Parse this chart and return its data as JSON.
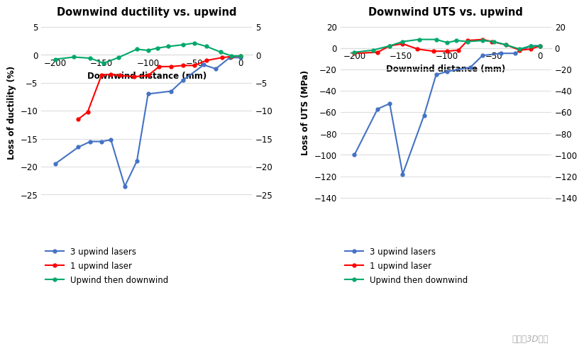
{
  "chart1": {
    "title": "Downwind ductility vs. upwind",
    "xlabel": "Downwind distance (mm)",
    "ylabel": "Loss of ductility (%)",
    "xlim": [
      -215,
      12
    ],
    "ylim": [
      -26.5,
      6
    ],
    "xticks": [
      -200,
      -150,
      -100,
      -50,
      0
    ],
    "yticks_left": [
      -25,
      -20,
      -15,
      -10,
      -5,
      0,
      5
    ],
    "yticks_right": [
      -25,
      -20,
      -15,
      -10,
      -5,
      0,
      5
    ],
    "blue_x": [
      -200,
      -175,
      -162,
      -150,
      -140,
      -125,
      -112,
      -100,
      -75,
      -62,
      -40,
      -27,
      -12,
      0
    ],
    "blue_y": [
      -19.5,
      -16.5,
      -15.5,
      -15.5,
      -15.2,
      -23.5,
      -19.0,
      -7.0,
      -6.5,
      -4.5,
      -1.8,
      -2.5,
      -0.5,
      -0.5
    ],
    "red_x": [
      -175,
      -165,
      -150,
      -140,
      -130,
      -115,
      -100,
      -88,
      -75,
      -62,
      -50,
      -37,
      -20,
      -10,
      0
    ],
    "red_y": [
      -11.5,
      -10.2,
      -3.6,
      -3.5,
      -3.7,
      -3.9,
      -3.7,
      -2.1,
      -2.1,
      -1.9,
      -1.9,
      -1.0,
      -0.5,
      -0.3,
      -0.2
    ],
    "green_x": [
      -200,
      -180,
      -162,
      -148,
      -132,
      -112,
      -100,
      -90,
      -78,
      -62,
      -50,
      -37,
      -22,
      -10,
      0
    ],
    "green_y": [
      -0.8,
      -0.4,
      -0.6,
      -1.5,
      -0.5,
      1.0,
      0.8,
      1.2,
      1.5,
      1.8,
      2.1,
      1.5,
      0.5,
      -0.2,
      -0.2
    ]
  },
  "chart2": {
    "title": "Downwind UTS vs. upwind",
    "xlabel": "Downwind distance (mm)",
    "ylabel": "Loss of UTS (MPa)",
    "xlim": [
      -215,
      12
    ],
    "ylim": [
      -145,
      25
    ],
    "xticks": [
      -200,
      -150,
      -100,
      -50,
      0
    ],
    "yticks_left": [
      -140,
      -120,
      -100,
      -80,
      -60,
      -40,
      -20,
      0,
      20
    ],
    "yticks_right": [
      -140,
      -120,
      -100,
      -80,
      -60,
      -40,
      -20,
      0,
      20
    ],
    "blue_x": [
      -200,
      -175,
      -162,
      -148,
      -125,
      -112,
      -100,
      -75,
      -62,
      -42,
      -27,
      -10,
      0
    ],
    "blue_y": [
      -100,
      -57,
      -52,
      -118,
      -63,
      -25,
      -22,
      -18,
      -7,
      -5,
      -5,
      2,
      2
    ],
    "red_x": [
      -200,
      -175,
      -162,
      -148,
      -132,
      -115,
      -100,
      -88,
      -78,
      -62,
      -52,
      -37,
      -22,
      -10,
      0
    ],
    "red_y": [
      -5,
      -4,
      2,
      4,
      -1,
      -3,
      -3,
      -2,
      7,
      8,
      6,
      3,
      -2,
      -1,
      2
    ],
    "green_x": [
      -200,
      -180,
      -162,
      -148,
      -130,
      -112,
      -100,
      -90,
      -78,
      -62,
      -50,
      -37,
      -22,
      -10,
      0
    ],
    "green_y": [
      -4,
      -2,
      2,
      6,
      8,
      8,
      5,
      7,
      6,
      7,
      6,
      3,
      -1,
      2,
      2
    ]
  },
  "blue_color": "#4472C4",
  "red_color": "#FF0000",
  "green_color": "#00A86B",
  "legend": [
    "3 upwind lasers",
    "1 upwind laser",
    "Upwind then downwind"
  ],
  "watermark": "南极熊3D打印"
}
